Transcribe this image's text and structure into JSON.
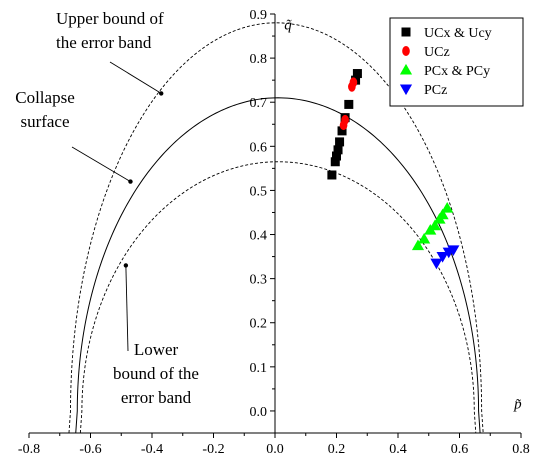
{
  "chart_data": {
    "type": "scatter",
    "xlabel": "p̃",
    "ylabel": "q̃",
    "xlim": [
      -0.8,
      0.8
    ],
    "ylim": [
      -0.05,
      0.9
    ],
    "x_ticks": [
      -0.8,
      -0.6,
      -0.4,
      -0.2,
      0.0,
      0.2,
      0.4,
      0.6,
      0.8
    ],
    "y_ticks": [
      0.0,
      0.1,
      0.2,
      0.3,
      0.4,
      0.5,
      0.6,
      0.7,
      0.8,
      0.9
    ],
    "legend_position": "top-right",
    "curves": [
      {
        "id": "upper",
        "style": "dashed",
        "peak": 0.88,
        "x_left": -0.665,
        "x_right": 0.672
      },
      {
        "id": "collapse",
        "style": "solid",
        "peak": 0.71,
        "x_left": -0.643,
        "x_right": 0.662
      },
      {
        "id": "lower",
        "style": "dashed",
        "peak": 0.565,
        "x_left": -0.628,
        "x_right": 0.648
      }
    ],
    "annotations": [
      {
        "text": [
          "Upper bound of",
          "the error band"
        ],
        "point": [
          -0.37,
          0.72
        ]
      },
      {
        "text": [
          "Collapse",
          "surface"
        ],
        "point": [
          -0.47,
          0.52
        ]
      },
      {
        "text": [
          "Lower",
          "bound of the",
          "error band"
        ],
        "point": [
          -0.485,
          0.33
        ]
      }
    ],
    "series": [
      {
        "name": "UCx & Ucy",
        "marker": "square",
        "color": "#000000",
        "points": [
          [
            0.185,
            0.535
          ],
          [
            0.196,
            0.565
          ],
          [
            0.2,
            0.578
          ],
          [
            0.205,
            0.592
          ],
          [
            0.21,
            0.61
          ],
          [
            0.218,
            0.635
          ],
          [
            0.228,
            0.665
          ],
          [
            0.24,
            0.695
          ],
          [
            0.262,
            0.75
          ],
          [
            0.268,
            0.765
          ]
        ]
      },
      {
        "name": "UCz",
        "marker": "circle",
        "color": "#ff0000",
        "points": [
          [
            0.223,
            0.648
          ],
          [
            0.228,
            0.66
          ],
          [
            0.25,
            0.735
          ],
          [
            0.255,
            0.745
          ]
        ]
      },
      {
        "name": "PCx & PCy",
        "marker": "triangle-up",
        "color": "#00ff00",
        "points": [
          [
            0.465,
            0.375
          ],
          [
            0.485,
            0.39
          ],
          [
            0.505,
            0.41
          ],
          [
            0.52,
            0.42
          ],
          [
            0.535,
            0.435
          ],
          [
            0.545,
            0.445
          ],
          [
            0.56,
            0.46
          ]
        ]
      },
      {
        "name": "PCz",
        "marker": "triangle-down",
        "color": "#0000ff",
        "points": [
          [
            0.525,
            0.335
          ],
          [
            0.545,
            0.35
          ],
          [
            0.565,
            0.36
          ],
          [
            0.58,
            0.365
          ]
        ]
      }
    ]
  }
}
